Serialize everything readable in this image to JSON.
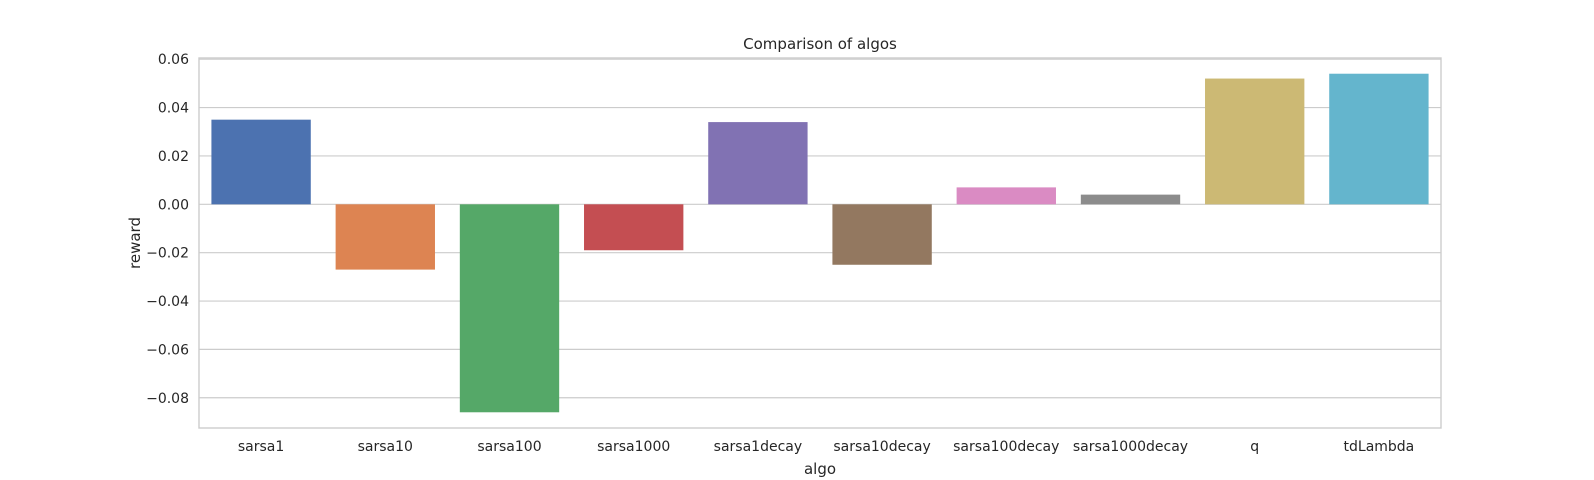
{
  "chart_data": {
    "type": "bar",
    "title": "Comparison of algos",
    "xlabel": "algo",
    "ylabel": "reward",
    "categories": [
      "sarsa1",
      "sarsa10",
      "sarsa100",
      "sarsa1000",
      "sarsa1decay",
      "sarsa10decay",
      "sarsa100decay",
      "sarsa1000decay",
      "q",
      "tdLambda"
    ],
    "values": [
      0.035,
      -0.027,
      -0.086,
      -0.019,
      0.034,
      -0.025,
      0.007,
      0.004,
      0.052,
      0.054
    ],
    "colors": [
      "#4c72b0",
      "#dd8452",
      "#55a868",
      "#c44e52",
      "#8172b3",
      "#937860",
      "#da8bc3",
      "#8c8c8c",
      "#ccb974",
      "#64b5cd"
    ],
    "yticks": [
      0.06,
      0.04,
      0.02,
      0.0,
      -0.02,
      -0.04,
      -0.06,
      -0.08
    ],
    "ytick_labels": [
      "0.06",
      "0.04",
      "0.02",
      "0.00",
      "−0.02",
      "−0.04",
      "−0.06",
      "−0.08"
    ],
    "ylim": [
      -0.0925,
      0.0605
    ],
    "grid": true,
    "grid_color": "#cccccc",
    "background": "#ffffff"
  }
}
